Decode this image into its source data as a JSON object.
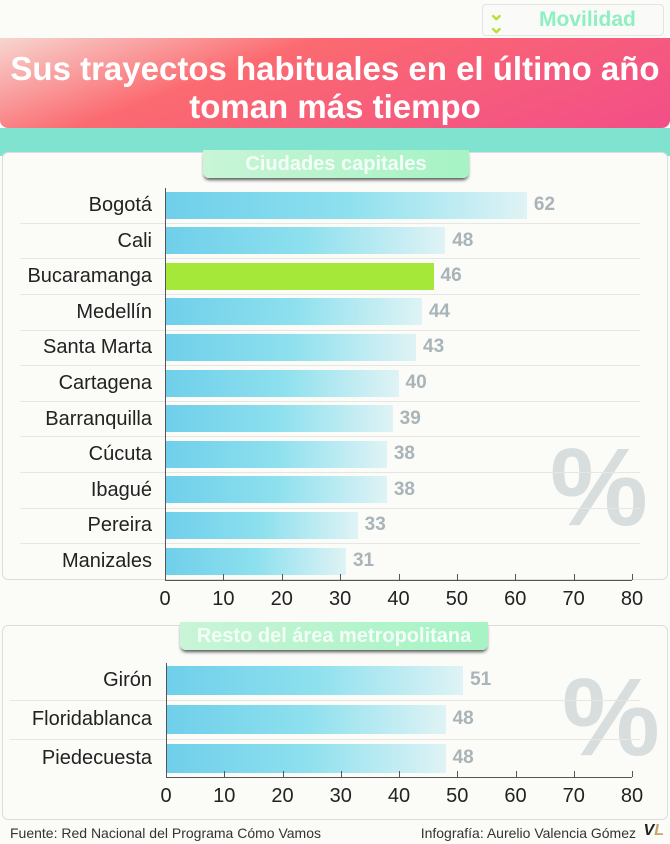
{
  "section_tag": "Movilidad",
  "title": "Sus trayectos habituales en el último año toman más tiempo",
  "colors": {
    "bar": "#6fcfea",
    "highlight": "#a6e83a",
    "banner": "#f24e88",
    "value": "#a9b4b8"
  },
  "percent_sign": "%",
  "chart_data": [
    {
      "type": "bar",
      "orientation": "horizontal",
      "title": "Ciudades capitales",
      "unit": "%",
      "xlim": [
        0,
        80
      ],
      "ticks": [
        "0",
        "10",
        "20",
        "30",
        "40",
        "50",
        "60",
        "70",
        "80"
      ],
      "categories": [
        "Bogotá",
        "Cali",
        "Bucaramanga",
        "Medellín",
        "Santa Marta",
        "Cartagena",
        "Barranquilla",
        "Cúcuta",
        "Ibagué",
        "Pereira",
        "Manizales"
      ],
      "values": [
        62,
        48,
        46,
        44,
        43,
        40,
        39,
        38,
        38,
        33,
        31
      ],
      "highlight": "Bucaramanga"
    },
    {
      "type": "bar",
      "orientation": "horizontal",
      "title": "Resto del área metropolitana",
      "unit": "%",
      "xlim": [
        0,
        80
      ],
      "ticks": [
        "0",
        "10",
        "20",
        "30",
        "40",
        "50",
        "60",
        "70",
        "80"
      ],
      "categories": [
        "Girón",
        "Floridablanca",
        "Piedecuesta"
      ],
      "values": [
        51,
        48,
        48
      ]
    }
  ],
  "footer": {
    "source": "Fuente: Red Nacional del Programa Cómo Vamos",
    "credit": "Infografía: Aurelio Valencia Gómez",
    "logo": "VL"
  }
}
